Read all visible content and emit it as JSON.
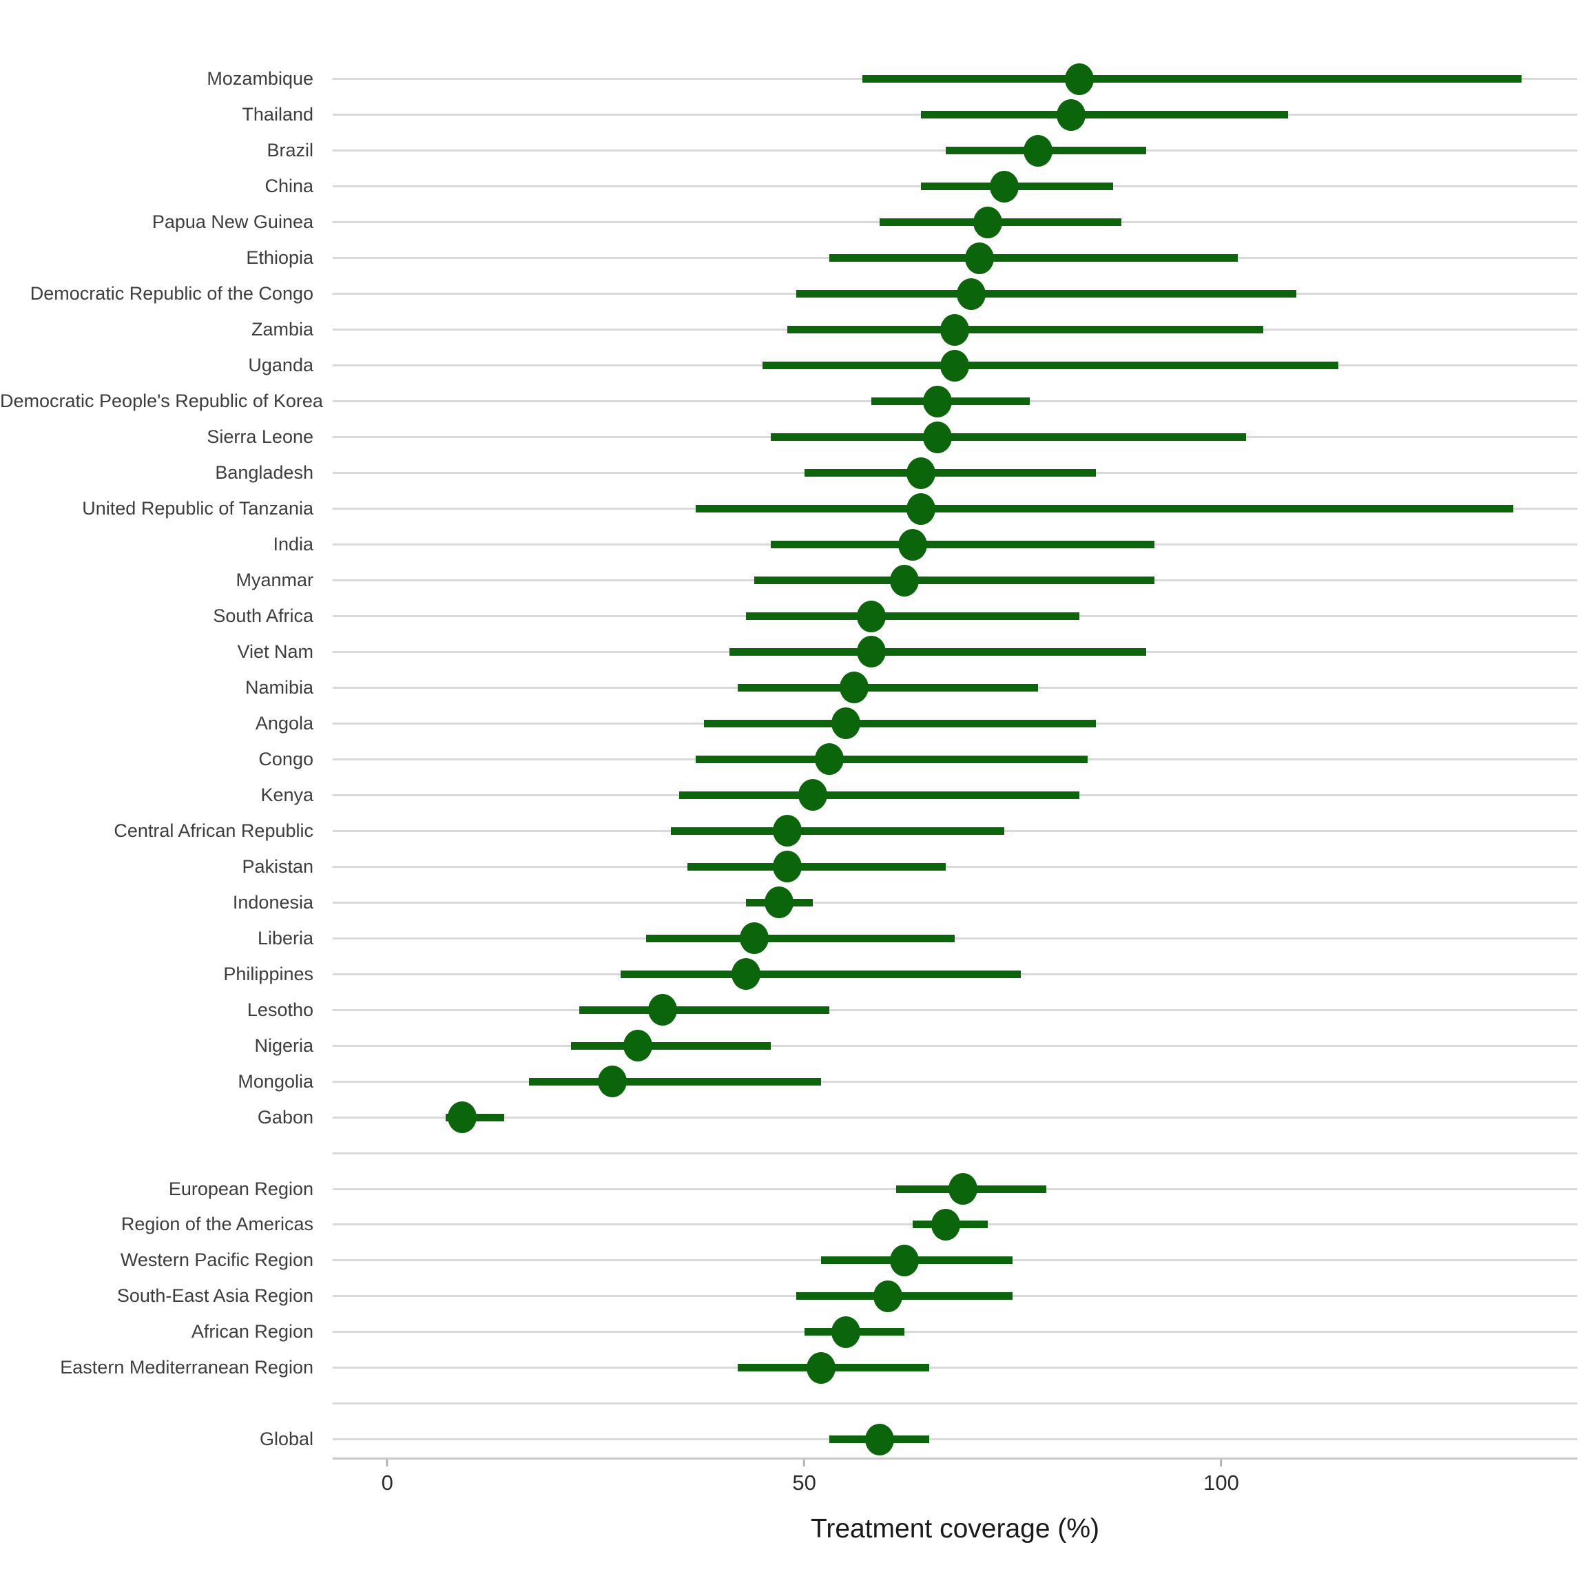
{
  "chart_data": {
    "type": "scatter",
    "variant": "dot-and-interval forest plot, horizontal",
    "title": "",
    "xlabel": "Treatment coverage (%)",
    "ylabel": "",
    "xlim": [
      -6.55,
      142.7
    ],
    "x_ticks": [
      0,
      50,
      100
    ],
    "grid": "horizontal row gridlines only",
    "legend": "none",
    "point_color": "#0b660b",
    "gridline_color": "#d9d9d9",
    "axis_line_color": "#c9c9c9",
    "groups": [
      {
        "name": "countries",
        "items": [
          {
            "label": "Mozambique",
            "value": 83,
            "ci_low": 57,
            "ci_high": 136
          },
          {
            "label": "Thailand",
            "value": 82,
            "ci_low": 64,
            "ci_high": 108
          },
          {
            "label": "Brazil",
            "value": 78,
            "ci_low": 67,
            "ci_high": 91
          },
          {
            "label": "China",
            "value": 74,
            "ci_low": 64,
            "ci_high": 87
          },
          {
            "label": "Papua New Guinea",
            "value": 72,
            "ci_low": 59,
            "ci_high": 88
          },
          {
            "label": "Ethiopia",
            "value": 71,
            "ci_low": 53,
            "ci_high": 102
          },
          {
            "label": "Democratic Republic of the Congo",
            "value": 70,
            "ci_low": 49,
            "ci_high": 109
          },
          {
            "label": "Zambia",
            "value": 68,
            "ci_low": 48,
            "ci_high": 105
          },
          {
            "label": "Uganda",
            "value": 68,
            "ci_low": 45,
            "ci_high": 114
          },
          {
            "label": "Democratic People's Republic of Korea",
            "value": 66,
            "ci_low": 58,
            "ci_high": 77
          },
          {
            "label": "Sierra Leone",
            "value": 66,
            "ci_low": 46,
            "ci_high": 103
          },
          {
            "label": "Bangladesh",
            "value": 64,
            "ci_low": 50,
            "ci_high": 85
          },
          {
            "label": "United Republic of Tanzania",
            "value": 64,
            "ci_low": 37,
            "ci_high": 135
          },
          {
            "label": "India",
            "value": 63,
            "ci_low": 46,
            "ci_high": 92
          },
          {
            "label": "Myanmar",
            "value": 62,
            "ci_low": 44,
            "ci_high": 92
          },
          {
            "label": "South Africa",
            "value": 58,
            "ci_low": 43,
            "ci_high": 83
          },
          {
            "label": "Viet Nam",
            "value": 58,
            "ci_low": 41,
            "ci_high": 91
          },
          {
            "label": "Namibia",
            "value": 56,
            "ci_low": 42,
            "ci_high": 78
          },
          {
            "label": "Angola",
            "value": 55,
            "ci_low": 38,
            "ci_high": 85
          },
          {
            "label": "Congo",
            "value": 53,
            "ci_low": 37,
            "ci_high": 84
          },
          {
            "label": "Kenya",
            "value": 51,
            "ci_low": 35,
            "ci_high": 83
          },
          {
            "label": "Central African Republic",
            "value": 48,
            "ci_low": 34,
            "ci_high": 74
          },
          {
            "label": "Pakistan",
            "value": 48,
            "ci_low": 36,
            "ci_high": 67
          },
          {
            "label": "Indonesia",
            "value": 47,
            "ci_low": 43,
            "ci_high": 51
          },
          {
            "label": "Liberia",
            "value": 44,
            "ci_low": 31,
            "ci_high": 68
          },
          {
            "label": "Philippines",
            "value": 43,
            "ci_low": 28,
            "ci_high": 76
          },
          {
            "label": "Lesotho",
            "value": 33,
            "ci_low": 23,
            "ci_high": 53
          },
          {
            "label": "Nigeria",
            "value": 30,
            "ci_low": 22,
            "ci_high": 46
          },
          {
            "label": "Mongolia",
            "value": 27,
            "ci_low": 17,
            "ci_high": 52
          },
          {
            "label": "Gabon",
            "value": 9,
            "ci_low": 7,
            "ci_high": 14
          }
        ]
      },
      {
        "name": "who-regions",
        "items": [
          {
            "label": "European Region",
            "value": 69,
            "ci_low": 61,
            "ci_high": 79
          },
          {
            "label": "Region of the Americas",
            "value": 67,
            "ci_low": 63,
            "ci_high": 72
          },
          {
            "label": "Western Pacific Region",
            "value": 62,
            "ci_low": 52,
            "ci_high": 75
          },
          {
            "label": "South-East Asia Region",
            "value": 60,
            "ci_low": 49,
            "ci_high": 75
          },
          {
            "label": "African Region",
            "value": 55,
            "ci_low": 50,
            "ci_high": 62
          },
          {
            "label": "Eastern Mediterranean Region",
            "value": 52,
            "ci_low": 42,
            "ci_high": 65
          }
        ]
      },
      {
        "name": "global",
        "items": [
          {
            "label": "Global",
            "value": 59,
            "ci_low": 53,
            "ci_high": 65
          }
        ]
      }
    ]
  }
}
